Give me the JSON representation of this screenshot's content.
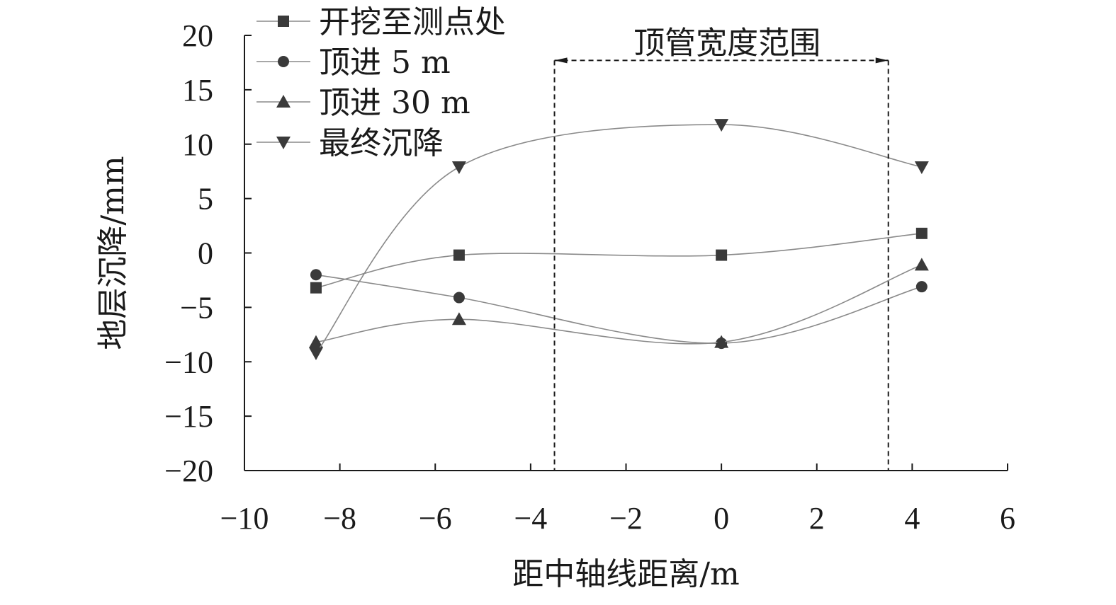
{
  "chart_data": {
    "type": "line",
    "title": "",
    "xlabel": "距中轴线距离/m",
    "ylabel": "地层沉降/mm",
    "xlim": [
      -10,
      6
    ],
    "ylim": [
      -20,
      20
    ],
    "xticks": [
      -10,
      -8,
      -6,
      -4,
      -2,
      0,
      2,
      4,
      6
    ],
    "yticks": [
      -20,
      -15,
      -10,
      -5,
      0,
      5,
      10,
      15,
      20
    ],
    "xtick_labels": [
      "−10",
      "−8",
      "−6",
      "−4",
      "−2",
      "0",
      "2",
      "4",
      "6"
    ],
    "ytick_labels": [
      "−20",
      "−15",
      "−10",
      "−5",
      "0",
      "5",
      "10",
      "15",
      "20"
    ],
    "grid": false,
    "legend_position": "top-left",
    "series": [
      {
        "name": "开挖至测点处",
        "marker": "square",
        "x": [
          -8.5,
          -5.5,
          0,
          4.2
        ],
        "y": [
          -3.2,
          -0.2,
          -0.2,
          1.8
        ]
      },
      {
        "name": "顶进 5 m",
        "marker": "circle",
        "x": [
          -8.5,
          -5.5,
          0,
          4.2
        ],
        "y": [
          -2.0,
          -4.1,
          -8.3,
          -3.1
        ]
      },
      {
        "name": "顶进 30 m",
        "marker": "triangle-up",
        "x": [
          -8.5,
          -5.5,
          0,
          4.2
        ],
        "y": [
          -8.2,
          -6.1,
          -8.2,
          -1.1
        ]
      },
      {
        "name": "最终沉降",
        "marker": "triangle-down",
        "x": [
          -8.5,
          -5.5,
          0,
          4.2
        ],
        "y": [
          -9.2,
          7.9,
          11.8,
          7.9
        ]
      }
    ],
    "annotations": [
      {
        "text": "顶管宽度范围",
        "x_range": [
          -3.5,
          3.5
        ],
        "y": 17.7
      }
    ]
  },
  "colors": {
    "series_line": "#8a8a8a",
    "marker": "#3a3a3a",
    "axis": "#1a1a1a"
  }
}
